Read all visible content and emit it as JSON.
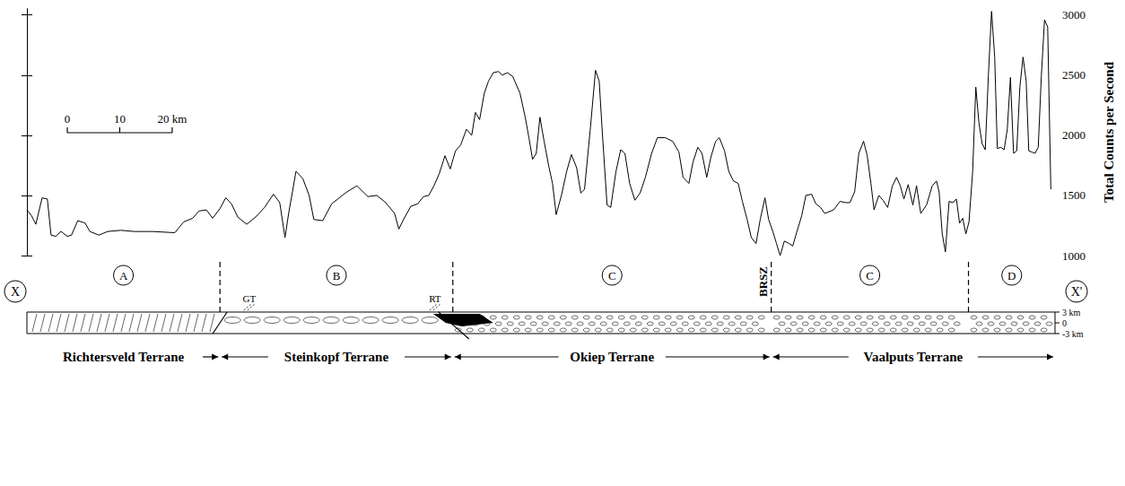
{
  "chart_data": {
    "type": "line",
    "y_axis_label": "Total Counts per Second",
    "color": "#000000",
    "x": [
      0,
      0.9,
      1.7,
      2.9,
      3.9,
      4.6,
      5.5,
      6.5,
      7.7,
      8.5,
      9.7,
      11.1,
      12.0,
      13.7,
      15.4,
      17.9,
      20.5,
      23.9,
      28.2,
      29.9,
      31.6,
      32.8,
      34.2,
      35.4,
      36.8,
      37.9,
      39.0,
      40.2,
      41.9,
      43.6,
      45.3,
      47.0,
      48.2,
      49.2,
      49.9,
      51.3,
      52.6,
      53.8,
      54.7,
      56.4,
      58.1,
      60.7,
      62.9,
      65.0,
      66.7,
      68.4,
      70.1,
      70.9,
      71.8,
      73.2,
      74.5,
      75.6,
      76.6,
      77.6,
      78.6,
      79.7,
      80.7,
      81.7,
      82.7,
      83.8,
      84.8,
      85.5,
      86.3,
      87.2,
      88.0,
      88.9,
      89.9,
      90.6,
      91.6,
      92.6,
      94.0,
      95.0,
      95.7,
      96.4,
      97.1,
      97.8,
      98.6,
      99.5,
      100.2,
      100.9,
      101.9,
      102.9,
      103.8,
      104.8,
      105.6,
      106.3,
      107.4,
      108.4,
      109.1,
      109.7,
      110.6,
      111.3,
      112.3,
      113.2,
      114.0,
      114.9,
      115.9,
      116.9,
      117.9,
      119.1,
      120.2,
      121.7,
      123.1,
      124.3,
      125.1,
      126.2,
      127.0,
      127.9,
      128.7,
      129.6,
      130.4,
      131.3,
      132.0,
      133.0,
      133.8,
      134.7,
      135.6,
      136.4,
      137.3,
      138.1,
      139.0,
      139.8,
      140.7,
      141.4,
      142.2,
      142.9,
      143.6,
      144.4,
      145.3,
      146.0,
      146.8,
      147.7,
      148.5,
      149.6,
      150.4,
      151.3,
      152.1,
      153.8,
      155.0,
      156.1,
      156.9,
      157.8,
      158.6,
      159.5,
      160.2,
      160.9,
      161.5,
      162.4,
      163.2,
      164.1,
      165.0,
      165.8,
      166.5,
      167.2,
      168.0,
      168.9,
      169.6,
      170.4,
      171.5,
      172.6,
      173.4,
      173.9,
      174.5,
      175.1,
      175.8,
      176.5,
      177.2,
      177.8,
      178.4,
      179.0,
      179.6,
      180.3,
      180.9,
      181.5,
      182.1,
      182.7,
      183.3,
      183.9,
      184.5,
      185.0,
      185.7,
      186.3,
      186.9,
      187.5,
      188.1,
      188.7,
      189.3,
      189.9,
      190.5,
      191.0,
      191.6,
      192.2,
      192.8,
      193.4,
      194.0,
      194.6,
      195.2
    ],
    "values": [
      1380,
      1330,
      1260,
      1480,
      1470,
      1170,
      1160,
      1200,
      1160,
      1170,
      1290,
      1270,
      1200,
      1170,
      1200,
      1210,
      1200,
      1200,
      1190,
      1280,
      1310,
      1370,
      1380,
      1310,
      1390,
      1480,
      1430,
      1320,
      1260,
      1320,
      1400,
      1510,
      1440,
      1150,
      1350,
      1700,
      1640,
      1500,
      1300,
      1290,
      1430,
      1520,
      1580,
      1490,
      1500,
      1440,
      1350,
      1220,
      1300,
      1410,
      1430,
      1490,
      1500,
      1580,
      1680,
      1830,
      1720,
      1870,
      1920,
      2050,
      2000,
      2190,
      2130,
      2350,
      2450,
      2520,
      2530,
      2500,
      2520,
      2490,
      2350,
      2150,
      1980,
      1800,
      1850,
      2150,
      1950,
      1740,
      1600,
      1340,
      1500,
      1700,
      1840,
      1730,
      1520,
      1550,
      2050,
      2540,
      2450,
      2020,
      1420,
      1400,
      1700,
      1880,
      1850,
      1600,
      1460,
      1520,
      1650,
      1850,
      1980,
      1980,
      1950,
      1860,
      1650,
      1600,
      1780,
      1900,
      1850,
      1650,
      1820,
      1950,
      1980,
      1870,
      1700,
      1620,
      1600,
      1450,
      1300,
      1150,
      1100,
      1300,
      1480,
      1300,
      1200,
      1100,
      1000,
      1120,
      1100,
      1080,
      1200,
      1330,
      1500,
      1510,
      1430,
      1400,
      1350,
      1380,
      1450,
      1440,
      1440,
      1530,
      1850,
      1950,
      1830,
      1600,
      1380,
      1500,
      1460,
      1400,
      1580,
      1650,
      1580,
      1470,
      1590,
      1420,
      1580,
      1350,
      1420,
      1580,
      1620,
      1530,
      1180,
      1030,
      1450,
      1440,
      1470,
      1270,
      1310,
      1180,
      1280,
      1700,
      2400,
      2100,
      1930,
      1880,
      2500,
      3030,
      2650,
      1890,
      1900,
      1880,
      2050,
      2480,
      1850,
      1870,
      2400,
      2650,
      2450,
      1870,
      1860,
      1850,
      1900,
      2500,
      2960,
      2900,
      1550
    ],
    "xlim": [
      0,
      196
    ],
    "ylim": [
      1000,
      3050
    ],
    "yticks": [
      1000,
      1500,
      2000,
      2500,
      3000
    ],
    "tick_labels": "y",
    "grid": false,
    "scale_bar": [
      {
        "value": 0,
        "label": "0"
      },
      {
        "value": 10,
        "label": "10"
      },
      {
        "value": 20,
        "label": "20 km"
      }
    ]
  },
  "section": {
    "start": "X",
    "end": "X'",
    "zones": [
      {
        "label": "A",
        "from": 0,
        "to": 36.8
      },
      {
        "label": "B",
        "from": 36.8,
        "to": 81.2
      },
      {
        "label": "C",
        "from": 81.2,
        "to": 141.9
      },
      {
        "label": "C",
        "from": 141.9,
        "to": 179.5
      },
      {
        "label": "D",
        "from": 179.5,
        "to": 196
      }
    ],
    "structures": [
      {
        "label": "GT",
        "at": 42.4
      },
      {
        "label": "RT",
        "at": 77.8
      },
      {
        "label": "BRSZ",
        "at": 141.9
      }
    ],
    "terranes": [
      {
        "name": "Richtersveld Terrane",
        "from": 0,
        "to": 36.8
      },
      {
        "name": "Steinkopf Terrane",
        "from": 36.8,
        "to": 81.2
      },
      {
        "name": "Okiep Terrane",
        "from": 81.2,
        "to": 141.9
      },
      {
        "name": "Vaalputs Terrane",
        "from": 141.9,
        "to": 196
      }
    ],
    "depth_scale": [
      {
        "value": 3,
        "label": "3 km"
      },
      {
        "value": 0,
        "label": "0"
      },
      {
        "value": -3,
        "label": "-3 km"
      }
    ]
  }
}
